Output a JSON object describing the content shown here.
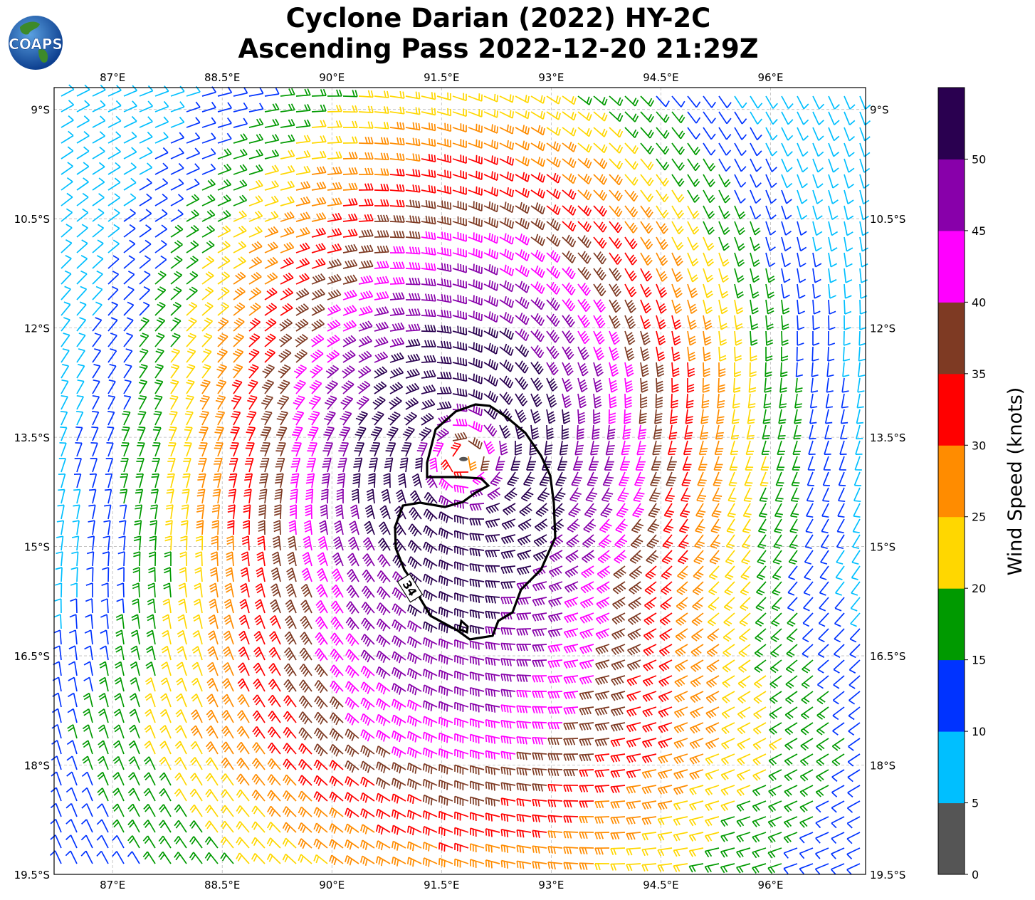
{
  "title": {
    "line1": "Cyclone Darian (2022) HY-2C",
    "line2": "Ascending Pass 2022-12-20 21:29Z"
  },
  "logo": {
    "text": "COAPS",
    "icon": "globe-logo-icon"
  },
  "map": {
    "lon_range": [
      86.2,
      97.3
    ],
    "lat_range": [
      -19.5,
      -8.7
    ],
    "lon_ticks": [
      "87°E",
      "88.5°E",
      "90°E",
      "91.5°E",
      "93°E",
      "94.5°E",
      "96°E"
    ],
    "lon_values": [
      87,
      88.5,
      90,
      91.5,
      93,
      94.5,
      96
    ],
    "lat_ticks": [
      "9°S",
      "10.5°S",
      "12°S",
      "13.5°S",
      "15°S",
      "16.5°S",
      "18°S",
      "19.5°S"
    ],
    "lat_values": [
      -9,
      -10.5,
      -12,
      -13.5,
      -15,
      -16.5,
      -18,
      -19.5
    ],
    "gridlines": true,
    "gridline_style": "dashed",
    "field": "wind barbs",
    "storm_center": {
      "lon": 91.8,
      "lat": -13.8
    },
    "contour": {
      "label": "34",
      "units": "knots"
    }
  },
  "colorbar": {
    "label": "Wind Speed (knots)",
    "ticks": [
      "0",
      "5",
      "10",
      "15",
      "20",
      "25",
      "30",
      "35",
      "40",
      "45",
      "50"
    ],
    "bins": [
      {
        "min": 0,
        "max": 5,
        "color": "#555555"
      },
      {
        "min": 5,
        "max": 10,
        "color": "#00bfff"
      },
      {
        "min": 10,
        "max": 15,
        "color": "#0033ff"
      },
      {
        "min": 15,
        "max": 20,
        "color": "#009a00"
      },
      {
        "min": 20,
        "max": 25,
        "color": "#ffd700"
      },
      {
        "min": 25,
        "max": 30,
        "color": "#ff8c00"
      },
      {
        "min": 30,
        "max": 35,
        "color": "#ff0000"
      },
      {
        "min": 35,
        "max": 40,
        "color": "#7e3a23"
      },
      {
        "min": 40,
        "max": 45,
        "color": "#ff00ff"
      },
      {
        "min": 45,
        "max": 50,
        "color": "#8800aa"
      },
      {
        "min": 50,
        "max": 55,
        "color": "#2a0050"
      }
    ]
  }
}
